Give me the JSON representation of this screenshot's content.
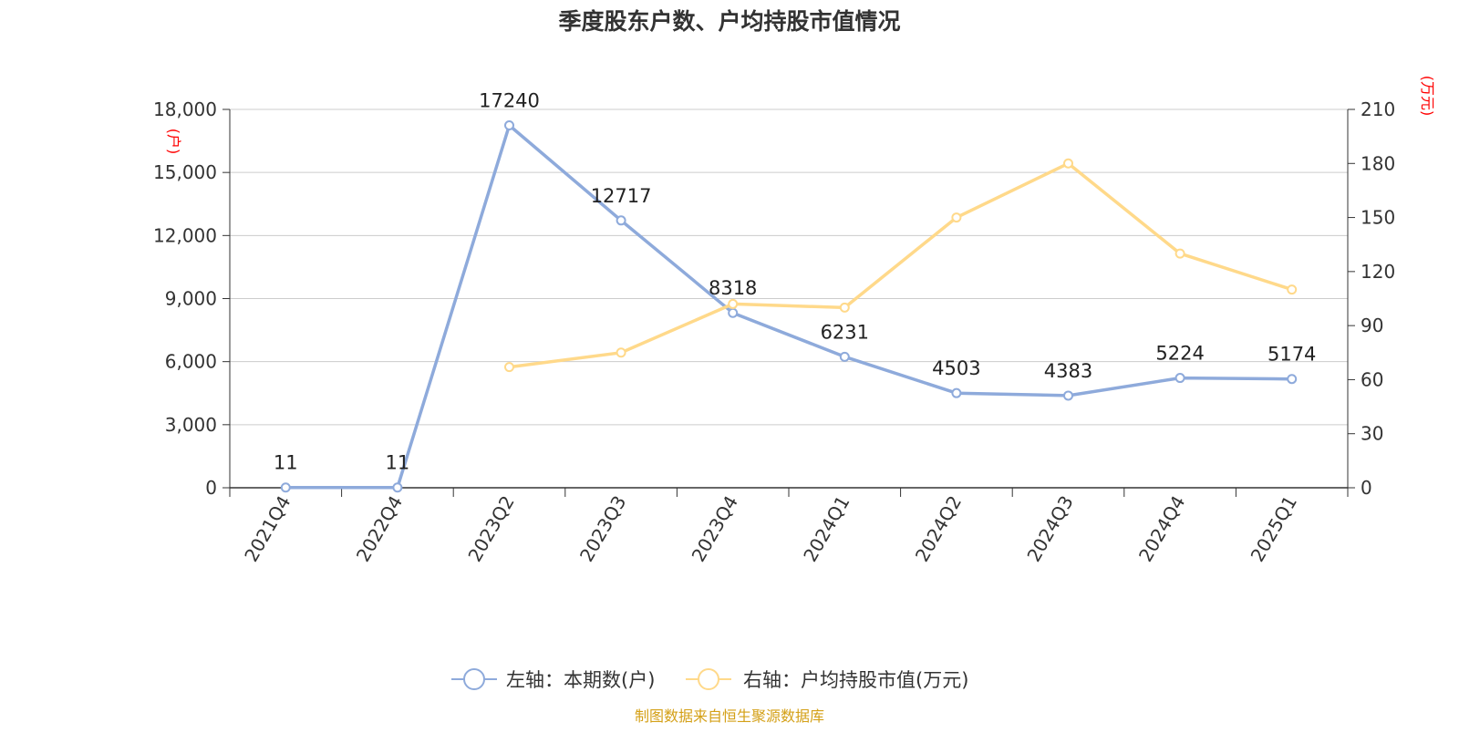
{
  "title": "季度股东户数、户均持股市值情况",
  "source_note": "制图数据来自恒生聚源数据库",
  "colors": {
    "left_series": "#8eaadb",
    "right_series": "#ffd98a",
    "grid": "#cccccc",
    "axis": "#333333",
    "unit_label": "#ff0000",
    "source_note": "#d4a017"
  },
  "chart_data": {
    "type": "line",
    "categories": [
      "2021Q4",
      "2022Q4",
      "2023Q2",
      "2023Q3",
      "2023Q4",
      "2024Q1",
      "2024Q2",
      "2024Q3",
      "2024Q4",
      "2025Q1"
    ],
    "left_axis": {
      "unit": "(户)",
      "ylim": [
        0,
        18000
      ],
      "ticks": [
        0,
        3000,
        6000,
        9000,
        12000,
        15000,
        18000
      ],
      "tick_labels": [
        "0",
        "3,000",
        "6,000",
        "9,000",
        "12,000",
        "15,000",
        "18,000"
      ]
    },
    "right_axis": {
      "unit": "(万元)",
      "ylim": [
        0,
        210
      ],
      "ticks": [
        0,
        30,
        60,
        90,
        120,
        150,
        180,
        210
      ],
      "tick_labels": [
        "0",
        "30",
        "60",
        "90",
        "120",
        "150",
        "180",
        "210"
      ]
    },
    "series": [
      {
        "name": "左轴：本期数(户)",
        "axis": "left",
        "values": [
          11,
          11,
          17240,
          12717,
          8318,
          6231,
          4503,
          4383,
          5224,
          5174
        ],
        "labels": [
          "11",
          "11",
          "17240",
          "12717",
          "8318",
          "6231",
          "4503",
          "4383",
          "5224",
          "5174"
        ]
      },
      {
        "name": "右轴：户均持股市值(万元)",
        "axis": "right",
        "values": [
          null,
          null,
          67,
          75,
          102,
          100,
          150,
          180,
          130,
          110
        ]
      }
    ],
    "grid": true,
    "legend_position": "bottom-center"
  }
}
